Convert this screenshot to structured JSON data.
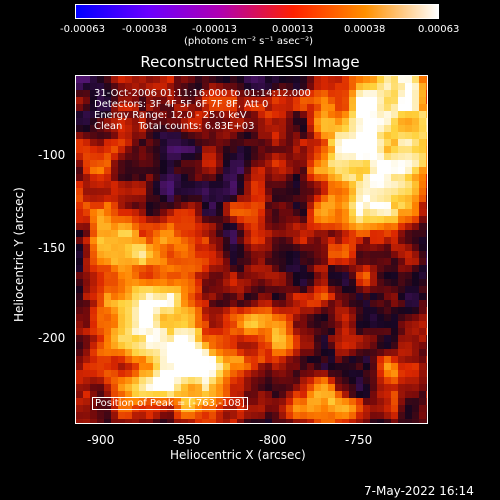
{
  "colorbar": {
    "ticks": [
      "-0.00063",
      "-0.00038",
      "-0.00013",
      "0.00013",
      "0.00038",
      "0.00063"
    ],
    "unit_label": "(photons cm⁻² s⁻¹ asec⁻²)",
    "gradient_colors": [
      "#0000ff",
      "#6a00ff",
      "#b000b0",
      "#ff2000",
      "#ff9000",
      "#ffffff"
    ]
  },
  "image": {
    "title": "Reconstructed RHESSI Image",
    "annotations": [
      "31-Oct-2006 01:11:16.000 to 01:14:12.000",
      "Detectors: 3F 4F 5F 6F 7F 8F, Att 0",
      "Energy Range: 12.0 - 25.0 keV",
      "Clean     Total counts: 6.83E+03"
    ],
    "peak_text": "Position of Peak = [-763,-108]",
    "x_axis_label": "Heliocentric X (arcsec)",
    "y_axis_label": "Heliocentric Y (arcsec)",
    "x_ticks": [
      "-900",
      "-850",
      "-800",
      "-750"
    ],
    "y_ticks": [
      "-100",
      "-150",
      "-200"
    ]
  },
  "footer": {
    "timestamp": "7-May-2022 16:14"
  }
}
